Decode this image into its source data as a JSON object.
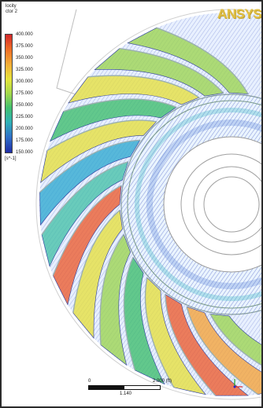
{
  "logo": "ANSYS",
  "legend": {
    "title_line1": "locity",
    "title_line2": "ctor 2",
    "labels": [
      "400.000",
      "375.000",
      "350.000",
      "325.000",
      "300.000",
      "275.000",
      "250.000",
      "225.000",
      "200.000",
      "175.000",
      "150.000"
    ],
    "unit": "[s^-1]",
    "color_top": "#d2262a",
    "color_bottom": "#1f2ca6"
  },
  "scale": {
    "start": "0",
    "end": "2.000 (ft)",
    "mid": "1.140"
  }
}
